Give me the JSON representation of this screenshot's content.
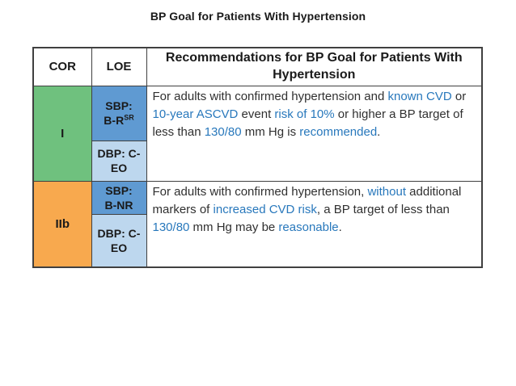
{
  "title": "BP Goal for Patients With Hypertension",
  "colors": {
    "green": "#6FC17E",
    "orange": "#F8A94E",
    "blue_dark_cell": "#5F9AD2",
    "blue_light_cell": "#BDD7EE",
    "blue_text": "#2878BC",
    "body_text": "#303030",
    "border": "#404040"
  },
  "table": {
    "headers": {
      "cor": "COR",
      "loe": "LOE",
      "rec": "Recommendations for BP Goal for Patients With Hypertension"
    },
    "rows": [
      {
        "cor": "I",
        "cor_color": "green",
        "loe_sbp": {
          "label": "SBP:\nB-R",
          "sup": "SR"
        },
        "loe_dbp": "DBP: C-EO",
        "rec_segments": [
          {
            "t": "For adults with confirmed hypertension and "
          },
          {
            "t": "known CVD",
            "c": "blue"
          },
          {
            "t": " or "
          },
          {
            "t": "10-year ASCVD",
            "c": "blue"
          },
          {
            "t": " event "
          },
          {
            "t": "risk of 10%",
            "c": "blue"
          },
          {
            "t": " or higher a BP target of less than "
          },
          {
            "t": "130/80",
            "c": "blue"
          },
          {
            "t": " mm Hg is "
          },
          {
            "t": "recommended",
            "c": "blue"
          },
          {
            "t": "."
          }
        ]
      },
      {
        "cor": "IIb",
        "cor_color": "orange",
        "loe_sbp": {
          "label": "SBP:\nB-NR",
          "sup": ""
        },
        "loe_dbp": "DBP: C-EO",
        "rec_segments": [
          {
            "t": "For adults with confirmed hypertension, "
          },
          {
            "t": "without",
            "c": "blue"
          },
          {
            "t": " additional markers of "
          },
          {
            "t": "increased CVD risk",
            "c": "blue"
          },
          {
            "t": ", a BP target of "
          },
          {
            "t": "less than "
          },
          {
            "t": "130/80",
            "c": "blue"
          },
          {
            "t": " mm Hg may be "
          },
          {
            "t": "reasonable",
            "c": "blue"
          },
          {
            "t": "."
          }
        ]
      }
    ]
  }
}
